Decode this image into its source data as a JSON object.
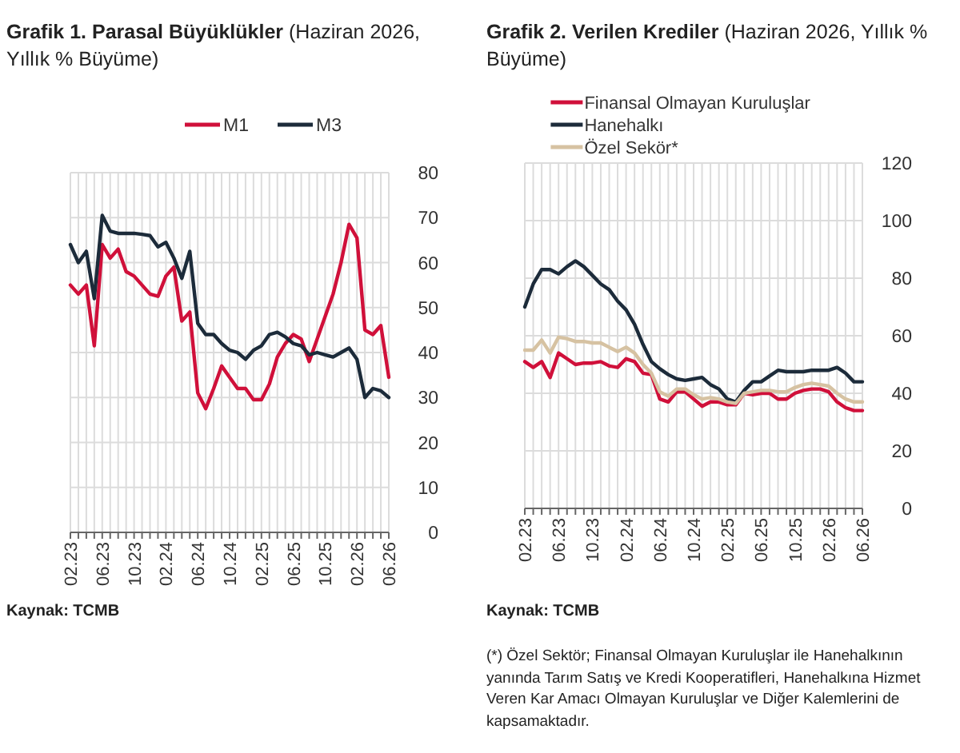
{
  "chart_data": [
    {
      "type": "line",
      "title": "Grafik 1. Parasal Büyüklükler",
      "subtitle": "(Haziran 2026, Yıllık % Büyüme)",
      "categories": [
        "02.23",
        null,
        null,
        null,
        "06.23",
        null,
        null,
        null,
        "10.23",
        null,
        null,
        null,
        "02.24",
        null,
        null,
        null,
        "06.24",
        null,
        null,
        null,
        "10.24",
        null,
        null,
        null,
        "02.25",
        null,
        null,
        null,
        "06.25",
        null,
        null,
        null,
        "10.25",
        null,
        null,
        null,
        "02.26",
        null,
        null,
        null,
        "06.26"
      ],
      "series": [
        {
          "name": "M1",
          "color": "#d0103a",
          "values": [
            55,
            53,
            55,
            41.5,
            64,
            61,
            63,
            58,
            57,
            55,
            53,
            52.5,
            57,
            59,
            47,
            49,
            31,
            27.5,
            32,
            37,
            34.5,
            32,
            32,
            29.5,
            29.5,
            33,
            39,
            42,
            44,
            43,
            38,
            43,
            48,
            53,
            60,
            68.5,
            65.5,
            45,
            44,
            46,
            34.5
          ]
        },
        {
          "name": "M3",
          "color": "#1c2b3a",
          "values": [
            64,
            60,
            62.5,
            52,
            70.5,
            67,
            66.5,
            66.5,
            66.5,
            66.3,
            66,
            63.5,
            64.5,
            61,
            56.5,
            62.5,
            46.5,
            44,
            44,
            42,
            40.5,
            40,
            38.5,
            40.5,
            41.5,
            44,
            44.5,
            43.5,
            42,
            41.5,
            39.5,
            40,
            39.5,
            39,
            40,
            41,
            38.5,
            30,
            32,
            31.5,
            30
          ]
        }
      ],
      "ylim": [
        0,
        80
      ],
      "yticks": [
        0,
        10,
        20,
        30,
        40,
        50,
        60,
        70,
        80
      ],
      "grid": true,
      "legend": "top",
      "marker": "none",
      "line_style": "solid",
      "annotations": [
        "Kaynak: TCMB"
      ]
    },
    {
      "type": "line",
      "title": "Grafik 2. Verilen Krediler",
      "subtitle": "(Haziran 2026, Yıllık % Büyüme)",
      "categories": [
        "02.23",
        null,
        null,
        null,
        "06.23",
        null,
        null,
        null,
        "10.23",
        null,
        null,
        null,
        "02.24",
        null,
        null,
        null,
        "06.24",
        null,
        null,
        null,
        "10.24",
        null,
        null,
        null,
        "02.25",
        null,
        null,
        null,
        "06.25",
        null,
        null,
        null,
        "10.25",
        null,
        null,
        null,
        "02.26",
        null,
        null,
        null,
        "06.26"
      ],
      "series": [
        {
          "name": "Finansal Olmayan Kuruluşlar",
          "color": "#d0103a",
          "values": [
            51,
            49,
            51,
            45.5,
            54,
            52,
            50,
            50.5,
            50.5,
            51,
            49.5,
            49,
            52,
            51,
            47,
            46.5,
            38,
            37,
            40.5,
            40.5,
            38,
            35.5,
            37,
            37,
            36,
            36,
            40,
            39.5,
            40,
            40,
            38,
            38,
            40,
            41,
            41.5,
            41.5,
            40.5,
            37,
            35,
            34,
            34
          ]
        },
        {
          "name": "Hanehalkı",
          "color": "#1c2b3a",
          "values": [
            70,
            78,
            83,
            83,
            81.5,
            84,
            86,
            84,
            81,
            78,
            76,
            72,
            69,
            64,
            57,
            51,
            48.5,
            46.5,
            45,
            44.5,
            45,
            45.5,
            43,
            41.5,
            38,
            37,
            41,
            44,
            44,
            46,
            48,
            47.5,
            47.5,
            47.5,
            48,
            48,
            48,
            49,
            47,
            44,
            44
          ]
        },
        {
          "name": "Özel Sekör*",
          "color": "#d6c2a2",
          "values": [
            55,
            55,
            58.5,
            54,
            59.5,
            59,
            58,
            58,
            57.5,
            57.5,
            56,
            54.5,
            56,
            54,
            50,
            47,
            40.5,
            39,
            41.5,
            41.5,
            39.5,
            38,
            38.5,
            38,
            37,
            36.5,
            40,
            40.5,
            41,
            41,
            40.5,
            40.5,
            42,
            43,
            43.5,
            43,
            42.5,
            40,
            38,
            37,
            37
          ]
        }
      ],
      "ylim": [
        0,
        120
      ],
      "yticks": [
        0,
        20,
        40,
        60,
        80,
        100,
        120
      ],
      "grid": true,
      "legend": "top",
      "marker": "none",
      "line_style": "solid",
      "annotations": [
        "Kaynak: TCMB",
        "(*) Özel Sektör; Finansal Olmayan Kuruluşlar ile Hanehalkının yanında Tarım Satış ve Kredi Kooperatifleri, Hanehalkına Hizmet Veren Kar Amacı Olmayan Kuruluşlar ve Diğer Kalemlerini de kapsamaktadır."
      ]
    }
  ]
}
